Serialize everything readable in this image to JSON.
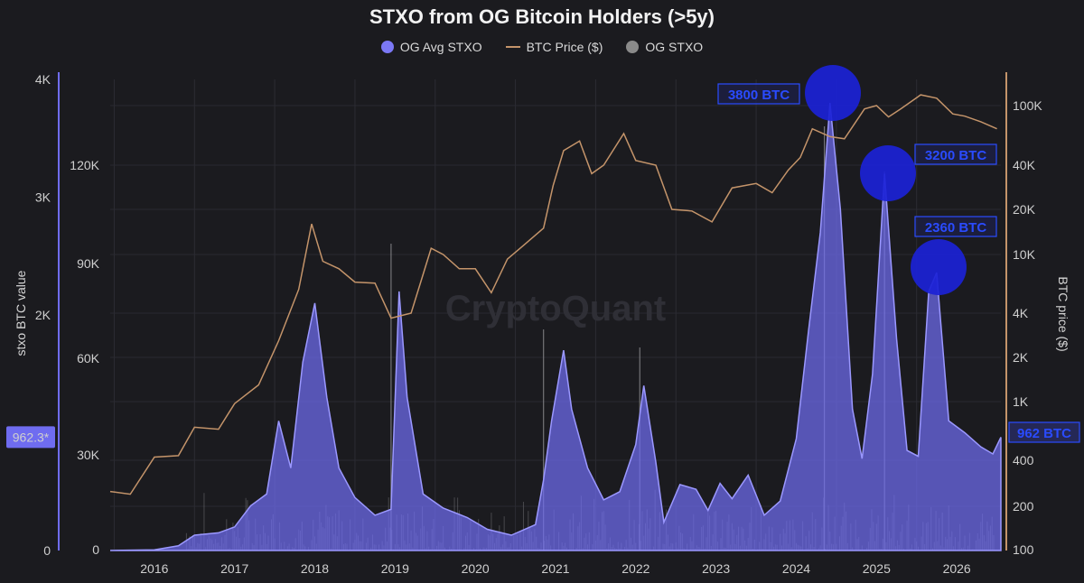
{
  "chart_data": {
    "type": "area",
    "title": "STXO from OG Bitcoin Holders (>5y)",
    "legend": [
      "OG Avg STXO",
      "BTC Price ($)",
      "OG STXO"
    ],
    "colors": {
      "og_avg": "#6f6cf0",
      "btc_price": "#c4946a",
      "og_stxo": "#8a8a8a",
      "annotation": "#1e28d8",
      "annotation_text": "#2a4bff"
    },
    "left_outer_axis": {
      "ticks": [
        "4K",
        "3K",
        "2K",
        "962.3*",
        "0"
      ],
      "label": "stxo BTC value",
      "values": [
        4000,
        3000,
        2000,
        962.3,
        0
      ]
    },
    "left_inner_axis": {
      "ticks": [
        "120K",
        "90K",
        "60K",
        "30K",
        "0"
      ],
      "values": [
        120000,
        90000,
        60000,
        30000,
        0
      ]
    },
    "right_axis": {
      "ticks": [
        "100K",
        "40K",
        "20K",
        "10K",
        "4K",
        "2K",
        "1K",
        "400",
        "200",
        "100"
      ],
      "values": [
        100000,
        40000,
        20000,
        10000,
        4000,
        2000,
        1000,
        400,
        200,
        100
      ],
      "scale": "log",
      "label": "BTC price ($)"
    },
    "x_ticks": [
      "2016",
      "2017",
      "2018",
      "2019",
      "2020",
      "2021",
      "2022",
      "2023",
      "2024",
      "2025",
      "2026"
    ],
    "x_range": [
      2015.45,
      2026.55
    ],
    "watermark": "CryptoQuant",
    "annotations": [
      {
        "text": "3800 BTC",
        "x": 2024.42,
        "value": 3800
      },
      {
        "text": "3200 BTC",
        "x": 2025.1,
        "value": 3200
      },
      {
        "text": "2360 BTC",
        "x": 2025.75,
        "value": 2360
      },
      {
        "text": "962 BTC",
        "x": 2026.5,
        "value": 962
      }
    ],
    "series": [
      {
        "name": "OG Avg STXO",
        "points": [
          [
            2015.45,
            0
          ],
          [
            2016.0,
            5
          ],
          [
            2016.3,
            40
          ],
          [
            2016.5,
            130
          ],
          [
            2016.8,
            150
          ],
          [
            2017.0,
            200
          ],
          [
            2017.2,
            380
          ],
          [
            2017.4,
            480
          ],
          [
            2017.55,
            1100
          ],
          [
            2017.7,
            700
          ],
          [
            2017.85,
            1600
          ],
          [
            2018.0,
            2100
          ],
          [
            2018.15,
            1300
          ],
          [
            2018.3,
            700
          ],
          [
            2018.5,
            450
          ],
          [
            2018.75,
            300
          ],
          [
            2018.95,
            350
          ],
          [
            2019.05,
            2200
          ],
          [
            2019.15,
            1300
          ],
          [
            2019.35,
            480
          ],
          [
            2019.6,
            360
          ],
          [
            2019.9,
            280
          ],
          [
            2020.15,
            180
          ],
          [
            2020.45,
            130
          ],
          [
            2020.75,
            220
          ],
          [
            2020.85,
            600
          ],
          [
            2020.95,
            1100
          ],
          [
            2021.1,
            1700
          ],
          [
            2021.2,
            1200
          ],
          [
            2021.4,
            700
          ],
          [
            2021.6,
            430
          ],
          [
            2021.8,
            500
          ],
          [
            2022.0,
            900
          ],
          [
            2022.1,
            1400
          ],
          [
            2022.25,
            750
          ],
          [
            2022.35,
            240
          ],
          [
            2022.55,
            560
          ],
          [
            2022.75,
            520
          ],
          [
            2022.9,
            340
          ],
          [
            2023.05,
            570
          ],
          [
            2023.2,
            440
          ],
          [
            2023.4,
            640
          ],
          [
            2023.6,
            300
          ],
          [
            2023.8,
            420
          ],
          [
            2024.0,
            950
          ],
          [
            2024.15,
            1850
          ],
          [
            2024.3,
            2700
          ],
          [
            2024.42,
            3800
          ],
          [
            2024.55,
            2900
          ],
          [
            2024.7,
            1200
          ],
          [
            2024.82,
            780
          ],
          [
            2024.95,
            1500
          ],
          [
            2025.1,
            3200
          ],
          [
            2025.25,
            1800
          ],
          [
            2025.38,
            850
          ],
          [
            2025.52,
            800
          ],
          [
            2025.65,
            2200
          ],
          [
            2025.75,
            2360
          ],
          [
            2025.9,
            1100
          ],
          [
            2026.1,
            1000
          ],
          [
            2026.3,
            880
          ],
          [
            2026.45,
            820
          ],
          [
            2026.55,
            962
          ]
        ]
      },
      {
        "name": "BTC Price ($)",
        "points": [
          [
            2015.45,
            250
          ],
          [
            2015.7,
            240
          ],
          [
            2016.0,
            420
          ],
          [
            2016.3,
            430
          ],
          [
            2016.5,
            670
          ],
          [
            2016.8,
            650
          ],
          [
            2017.0,
            970
          ],
          [
            2017.3,
            1300
          ],
          [
            2017.55,
            2600
          ],
          [
            2017.8,
            5800
          ],
          [
            2017.96,
            16000
          ],
          [
            2018.1,
            9000
          ],
          [
            2018.3,
            8000
          ],
          [
            2018.5,
            6500
          ],
          [
            2018.75,
            6400
          ],
          [
            2018.95,
            3700
          ],
          [
            2019.2,
            4000
          ],
          [
            2019.45,
            11000
          ],
          [
            2019.6,
            10000
          ],
          [
            2019.8,
            8000
          ],
          [
            2020.0,
            8000
          ],
          [
            2020.2,
            5500
          ],
          [
            2020.4,
            9300
          ],
          [
            2020.6,
            11500
          ],
          [
            2020.85,
            15000
          ],
          [
            2020.97,
            29000
          ],
          [
            2021.1,
            50000
          ],
          [
            2021.3,
            58000
          ],
          [
            2021.45,
            35000
          ],
          [
            2021.6,
            40000
          ],
          [
            2021.85,
            65000
          ],
          [
            2022.0,
            43000
          ],
          [
            2022.25,
            40000
          ],
          [
            2022.45,
            20000
          ],
          [
            2022.7,
            19500
          ],
          [
            2022.95,
            16500
          ],
          [
            2023.2,
            28000
          ],
          [
            2023.5,
            30000
          ],
          [
            2023.7,
            26000
          ],
          [
            2023.9,
            37000
          ],
          [
            2024.05,
            45000
          ],
          [
            2024.2,
            70000
          ],
          [
            2024.42,
            62000
          ],
          [
            2024.6,
            60000
          ],
          [
            2024.85,
            95000
          ],
          [
            2025.0,
            100000
          ],
          [
            2025.15,
            84000
          ],
          [
            2025.3,
            95000
          ],
          [
            2025.55,
            118000
          ],
          [
            2025.75,
            112000
          ],
          [
            2025.95,
            88000
          ],
          [
            2026.1,
            85000
          ],
          [
            2026.3,
            78000
          ],
          [
            2026.5,
            70000
          ]
        ]
      }
    ]
  }
}
